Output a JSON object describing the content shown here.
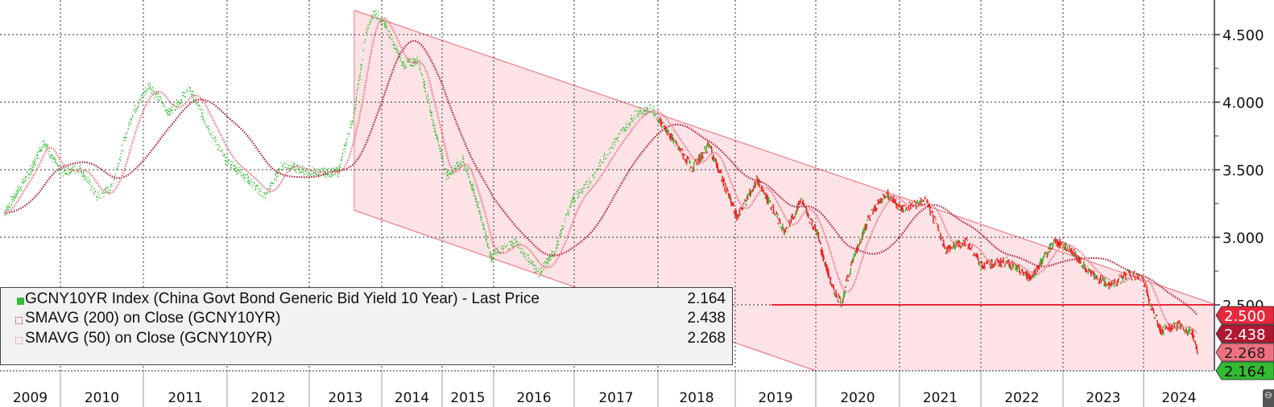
{
  "chart_data": {
    "type": "line",
    "title": "",
    "xlabel": "",
    "ylabel": "",
    "ylim": [
      2.012,
      4.756
    ],
    "yticks": [
      "4.500",
      "4.000",
      "3.500",
      "3.000",
      "2.500"
    ],
    "ytick_values": [
      4.5,
      4.0,
      3.5,
      3.0,
      2.5
    ],
    "xticks": [
      "2009",
      "2010",
      "2011",
      "2012",
      "2013",
      "2014",
      "2015",
      "2016",
      "2017",
      "2018",
      "2019",
      "2020",
      "2021",
      "2022",
      "2023",
      "2024"
    ],
    "grid": true,
    "series": [
      {
        "name": "GCNY10YR Index (China Govt Bond Generic Bid Yield 10 Year) - Last Price",
        "last": "2.164",
        "color": "#33bb33",
        "down_color": "#ee2222",
        "x": [
          2009.07,
          2009.53,
          2009.73,
          2010.0,
          2010.24,
          2010.44,
          2010.61,
          2010.87,
          2011.07,
          2011.31,
          2011.55,
          2011.74,
          2011.98,
          2012.17,
          2012.47,
          2012.67,
          2013.01,
          2013.4,
          2013.62,
          2013.79,
          2013.9,
          2014.08,
          2014.35,
          2014.61,
          2014.88,
          2015.09,
          2015.41,
          2015.72,
          2015.95,
          2016.27,
          2016.57,
          2016.77,
          2016.97,
          2017.16,
          2017.45,
          2017.74,
          2017.93,
          2018.24,
          2018.45,
          2018.66,
          2018.86,
          2019.02,
          2019.27,
          2019.47,
          2019.62,
          2019.82,
          2020.02,
          2020.09,
          2020.21,
          2020.31,
          2020.45,
          2020.64,
          2020.84,
          2021.03,
          2021.33,
          2021.57,
          2021.82,
          2022.02,
          2022.31,
          2022.61,
          2022.9,
          2023.1,
          2023.35,
          2023.6,
          2023.8,
          2024.0,
          2024.11,
          2024.22,
          2024.44,
          2024.61,
          2024.67
        ],
        "y": [
          3.18,
          3.51,
          3.71,
          3.48,
          3.51,
          3.3,
          3.36,
          3.92,
          4.13,
          3.92,
          4.1,
          3.86,
          3.57,
          3.48,
          3.3,
          3.54,
          3.48,
          3.48,
          3.92,
          4.52,
          4.67,
          4.55,
          4.28,
          4.31,
          3.8,
          3.45,
          3.57,
          3.21,
          2.85,
          2.97,
          2.73,
          2.91,
          3.27,
          3.39,
          3.68,
          3.92,
          3.95,
          3.68,
          3.51,
          3.68,
          3.39,
          3.15,
          3.42,
          3.21,
          3.03,
          3.27,
          3.03,
          2.85,
          2.61,
          2.52,
          2.85,
          3.15,
          3.33,
          3.21,
          3.27,
          2.91,
          2.97,
          2.79,
          2.82,
          2.7,
          2.97,
          2.91,
          2.73,
          2.64,
          2.73,
          2.7,
          2.46,
          2.31,
          2.35,
          2.29,
          2.164
        ]
      },
      {
        "name": "SMAVG (200)  on Close (GCNY10YR)",
        "last": "2.438",
        "color": "#b0203a",
        "window_years": 0.8
      },
      {
        "name": "SMAVG (50)  on Close (GCNY10YR)",
        "last": "2.268",
        "color": "#f07080",
        "window_years": 0.2
      }
    ],
    "annotations": {
      "channel_upper": [
        [
          2013.62,
          4.68
        ],
        [
          2024.96,
          2.506
        ]
      ],
      "channel_lower": [
        [
          2013.62,
          3.2
        ],
        [
          2020.0,
          2.012
        ]
      ],
      "horizontal_line": {
        "value": 2.5,
        "from": 2019.45,
        "label": "2.500",
        "color": "#e8283c"
      }
    },
    "legend": "bottom-left"
  }
}
